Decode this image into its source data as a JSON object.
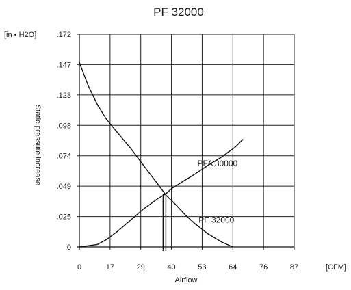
{
  "chart_data": {
    "type": "line",
    "title": "PF 32000",
    "xlabel": "Airflow",
    "ylabel": "Static pressure increase",
    "x_unit": "[CFM]",
    "y_unit": "[in • H2O]",
    "x_ticks": [
      {
        "value": 0,
        "label": "0"
      },
      {
        "value": 17,
        "label": "17"
      },
      {
        "value": 29,
        "label": "29"
      },
      {
        "value": 40,
        "label": "40"
      },
      {
        "value": 53,
        "label": "53"
      },
      {
        "value": 64,
        "label": "64"
      },
      {
        "value": 76,
        "label": "76"
      },
      {
        "value": 87,
        "label": "87"
      }
    ],
    "y_ticks": [
      {
        "value": 0,
        "label": "0"
      },
      {
        "value": 0.025,
        "label": ".025"
      },
      {
        "value": 0.049,
        "label": ".049"
      },
      {
        "value": 0.074,
        "label": ".074"
      },
      {
        "value": 0.098,
        "label": ".098"
      },
      {
        "value": 0.123,
        "label": ".123"
      },
      {
        "value": 0.147,
        "label": ".147"
      },
      {
        "value": 0.172,
        "label": ".172"
      }
    ],
    "xlim": [
      0,
      87
    ],
    "ylim": [
      0,
      0.172
    ],
    "grid": true,
    "series": [
      {
        "name": "PF 32000",
        "x": [
          0,
          2,
          5,
          10,
          15,
          20,
          25,
          30,
          35,
          38,
          42,
          46,
          50,
          55,
          60,
          64
        ],
        "y": [
          0.149,
          0.141,
          0.13,
          0.115,
          0.103,
          0.092,
          0.08,
          0.066,
          0.051,
          0.042,
          0.034,
          0.026,
          0.019,
          0.011,
          0.004,
          0.0
        ]
      },
      {
        "name": "PFA 30000",
        "x": [
          0,
          5,
          10,
          15,
          20,
          25,
          30,
          35,
          38,
          40,
          45,
          50,
          55,
          60,
          65,
          68
        ],
        "y": [
          0.0,
          0.001,
          0.002,
          0.006,
          0.013,
          0.022,
          0.031,
          0.039,
          0.043,
          0.047,
          0.053,
          0.059,
          0.066,
          0.073,
          0.081,
          0.087
        ]
      }
    ],
    "operating_point": {
      "x_values": [
        37,
        38
      ],
      "y": 0.043
    }
  }
}
